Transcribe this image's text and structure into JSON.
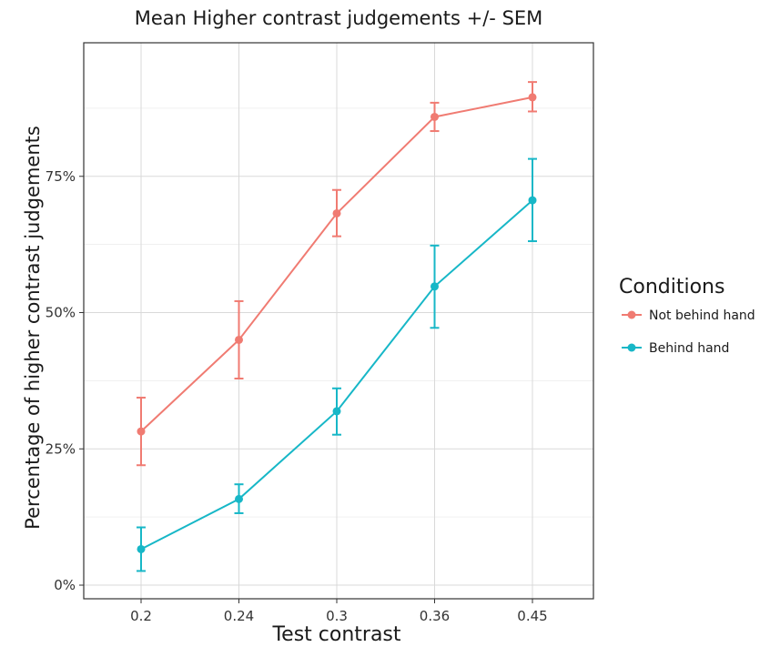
{
  "chart_data": {
    "type": "line",
    "title": "Mean Higher contrast judgements +/- SEM",
    "xlabel": "Test contrast",
    "ylabel": "Percentage of higher contrast judgements",
    "categories": [
      "0.2",
      "0.24",
      "0.3",
      "0.36",
      "0.45"
    ],
    "y_ticks": [
      0,
      25,
      50,
      75
    ],
    "y_tick_labels": [
      "0%",
      "25%",
      "50%",
      "75%"
    ],
    "ylim": [
      -2.5,
      99.5
    ],
    "grid": true,
    "legend": {
      "title": "Conditions",
      "placement": "right"
    },
    "series": [
      {
        "name": "Not behind hand",
        "color": "#f07b72",
        "values": [
          28.2,
          45.0,
          68.2,
          85.9,
          89.5
        ],
        "error_low": [
          22.0,
          37.9,
          64.0,
          83.3,
          86.9
        ],
        "error_high": [
          34.4,
          52.1,
          72.5,
          88.5,
          92.3
        ]
      },
      {
        "name": "Behind hand",
        "color": "#17b7c7",
        "values": [
          6.6,
          15.8,
          31.9,
          54.8,
          70.6
        ],
        "error_low": [
          2.6,
          13.2,
          27.6,
          47.2,
          63.1
        ],
        "error_high": [
          10.6,
          18.5,
          36.1,
          62.3,
          78.2
        ]
      }
    ]
  }
}
